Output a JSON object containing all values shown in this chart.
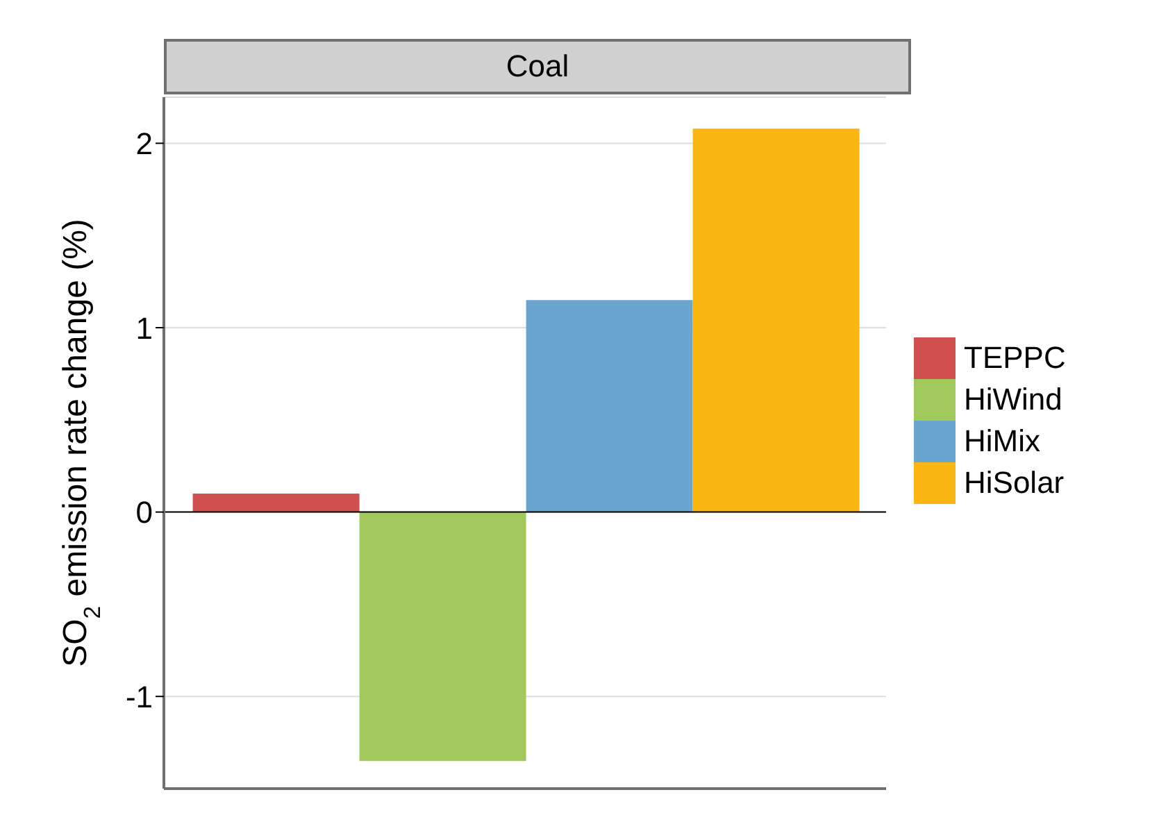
{
  "chart_data": {
    "type": "bar",
    "title": "Coal",
    "ylabel": "SO$_{2}$ emission rate change (%)",
    "categories": [
      null
    ],
    "series": [
      {
        "name": "TEPPC",
        "color": "#d05050",
        "values": [
          0.1
        ]
      },
      {
        "name": "HiWind",
        "color": "#a0c85a",
        "values": [
          -1.35
        ]
      },
      {
        "name": "HiMix",
        "color": "#6aa6d0",
        "values": [
          1.15
        ]
      },
      {
        "name": "HiSolar",
        "color": "#fbb614",
        "values": [
          2.08
        ]
      }
    ],
    "ylim": [
      -1.5,
      2.25
    ],
    "yticks": [
      -1,
      0,
      1,
      2
    ],
    "grid": "y",
    "legend": "right",
    "ref_lines": [
      {
        "axis": "y",
        "value": 0,
        "color": "#000000"
      }
    ]
  }
}
